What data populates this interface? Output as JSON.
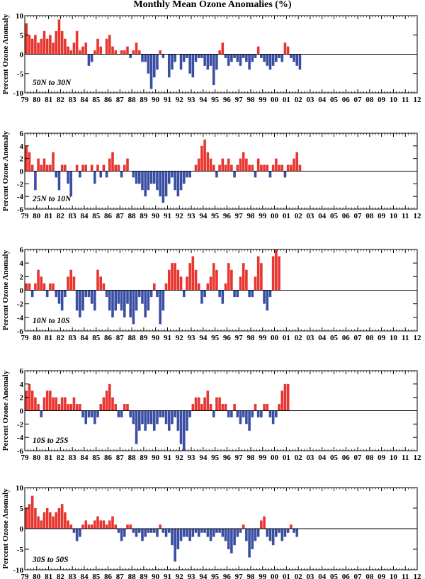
{
  "title": "Monthly Mean Ozone Anomalies (%)",
  "colors": {
    "positive": "#e8352f",
    "negative": "#3a4fa3",
    "axis": "#000000"
  },
  "chart_data": [
    {
      "type": "bar",
      "region_label": "50N to 30N",
      "ylabel": "Percent Ozone Anomaly",
      "x_ticks": [
        "79",
        "80",
        "81",
        "82",
        "83",
        "84",
        "85",
        "86",
        "87",
        "88",
        "89",
        "90",
        "91",
        "92",
        "93",
        "94",
        "95",
        "96",
        "97",
        "98",
        "99",
        "00",
        "01",
        "02",
        "03",
        "04",
        "05",
        "06",
        "07",
        "08",
        "09",
        "10",
        "11",
        "12"
      ],
      "y_ticks": [
        10,
        5,
        0,
        -5,
        -10
      ],
      "ylim": [
        -10,
        10
      ],
      "grid": false,
      "value_resolution": "approximate, sampled every 3 months from Jan 1979",
      "values": [
        8,
        5,
        4,
        5,
        3,
        4,
        6,
        4,
        5,
        3,
        6,
        9,
        6,
        4,
        2,
        1,
        3,
        6,
        1,
        2,
        3,
        -3,
        -2,
        1,
        4,
        2,
        0,
        4,
        5,
        2,
        1,
        0,
        1,
        1,
        2,
        -1,
        1,
        3,
        1,
        -2,
        -2,
        -5,
        -9,
        -6,
        -4,
        1,
        -1,
        0,
        -6,
        -4,
        -2,
        0,
        -4,
        -2,
        -1,
        -5,
        -6,
        -2,
        -1,
        -1,
        -3,
        -4,
        -3,
        -8,
        -4,
        1,
        3,
        -1,
        -3,
        -2,
        -1,
        -2,
        -3,
        -1,
        -2,
        -4,
        -2,
        -1,
        2,
        -1,
        -2,
        -3,
        -4,
        -3,
        -2,
        -1,
        -2,
        3,
        2,
        -1,
        -2,
        -3,
        -4
      ]
    },
    {
      "type": "bar",
      "region_label": "25N to 10N",
      "ylabel": "Percent Ozone Anomaly",
      "x_ticks": [
        "79",
        "80",
        "81",
        "82",
        "83",
        "84",
        "85",
        "86",
        "87",
        "88",
        "89",
        "90",
        "91",
        "92",
        "93",
        "94",
        "95",
        "96",
        "97",
        "98",
        "99",
        "00",
        "01",
        "02",
        "03",
        "04",
        "05",
        "06",
        "07",
        "08",
        "09",
        "10",
        "11",
        "12"
      ],
      "y_ticks": [
        6,
        4,
        2,
        0,
        -2,
        -4,
        -6
      ],
      "ylim": [
        -6,
        6
      ],
      "grid": false,
      "value_resolution": "approximate, sampled every 3 months from Jan 1979",
      "values": [
        4,
        3,
        1,
        -3,
        2,
        1,
        2,
        1,
        1,
        3,
        -1,
        -3,
        1,
        1,
        -2,
        -4,
        0,
        1,
        -1,
        1,
        1,
        0,
        1,
        -2,
        1,
        -1,
        1,
        -1,
        2,
        3,
        1,
        1,
        -1,
        1,
        2,
        0,
        -1,
        -2,
        -2,
        -3,
        -4,
        -3,
        -2,
        -2,
        -3,
        -4,
        -5,
        -4,
        -2,
        -1,
        -3,
        -4,
        -3,
        -2,
        -1,
        -1,
        0,
        1,
        2,
        4,
        5,
        3,
        2,
        1,
        -1,
        1,
        2,
        1,
        2,
        1,
        -1,
        1,
        2,
        3,
        2,
        1,
        1,
        -1,
        2,
        1,
        1,
        1,
        -1,
        1,
        2,
        1,
        1,
        -1,
        1,
        1,
        2,
        3,
        1
      ]
    },
    {
      "type": "bar",
      "region_label": "10N to 10S",
      "ylabel": "Percent Ozone Anomaly",
      "x_ticks": [
        "79",
        "80",
        "81",
        "82",
        "83",
        "84",
        "85",
        "86",
        "87",
        "88",
        "89",
        "90",
        "91",
        "92",
        "93",
        "94",
        "95",
        "96",
        "97",
        "98",
        "99",
        "00",
        "01",
        "02",
        "03",
        "04",
        "05",
        "06",
        "07",
        "08",
        "09",
        "10",
        "11",
        "12"
      ],
      "y_ticks": [
        6,
        4,
        2,
        0,
        -2,
        -4,
        -6
      ],
      "ylim": [
        -6,
        6
      ],
      "grid": false,
      "value_resolution": "approximate, sampled every 3 months from Jan 1979",
      "values": [
        1,
        1,
        -1,
        1,
        3,
        2,
        1,
        -1,
        1,
        1,
        -1,
        -2,
        -3,
        -1,
        2,
        3,
        2,
        -3,
        -4,
        -3,
        -1,
        -1,
        -2,
        -3,
        3,
        2,
        1,
        -1,
        -3,
        -4,
        -3,
        -2,
        -3,
        -4,
        -2,
        -4,
        -5,
        -3,
        -1,
        -2,
        -4,
        -3,
        -1,
        1,
        -1,
        -5,
        -3,
        1,
        3,
        4,
        4,
        3,
        2,
        -1,
        2,
        4,
        5,
        3,
        1,
        -2,
        -1,
        1,
        2,
        4,
        3,
        -1,
        -2,
        1,
        4,
        3,
        -1,
        -1,
        2,
        4,
        3,
        -1,
        -1,
        2,
        5,
        4,
        -2,
        -3,
        -1,
        5,
        6,
        5
      ]
    },
    {
      "type": "bar",
      "region_label": "10S to 25S",
      "ylabel": "Percent Ozone Anomaly",
      "x_ticks": [
        "79",
        "80",
        "81",
        "82",
        "83",
        "84",
        "85",
        "86",
        "87",
        "88",
        "89",
        "90",
        "91",
        "92",
        "93",
        "94",
        "95",
        "96",
        "97",
        "98",
        "99",
        "00",
        "01",
        "02",
        "03",
        "04",
        "05",
        "06",
        "07",
        "08",
        "09",
        "10",
        "11",
        "12"
      ],
      "y_ticks": [
        6,
        4,
        2,
        0,
        -2,
        -4,
        -6
      ],
      "ylim": [
        -6,
        6
      ],
      "grid": false,
      "value_resolution": "approximate, sampled every 3 months from Jan 1979",
      "values": [
        3,
        4,
        3,
        2,
        1,
        -1,
        2,
        3,
        3,
        2,
        2,
        1,
        2,
        2,
        1,
        1,
        2,
        1,
        1,
        -1,
        -2,
        -1,
        -1,
        -2,
        -1,
        1,
        2,
        3,
        4,
        2,
        1,
        -1,
        -1,
        1,
        1,
        -1,
        -2,
        -5,
        -3,
        -2,
        -3,
        -2,
        -2,
        -3,
        -2,
        -1,
        -1,
        -2,
        -3,
        -2,
        -1,
        -3,
        -5,
        -6,
        -3,
        -1,
        1,
        2,
        2,
        1,
        2,
        3,
        1,
        -1,
        2,
        2,
        1,
        1,
        -1,
        -1,
        1,
        -1,
        -2,
        -1,
        -2,
        -3,
        -1,
        1,
        -1,
        -1,
        1,
        1,
        -1,
        -2,
        -1,
        1,
        3,
        4,
        4
      ]
    },
    {
      "type": "bar",
      "region_label": "30S to 50S",
      "ylabel": "Percent Ozone Anomaly",
      "x_ticks": [
        "79",
        "80",
        "81",
        "82",
        "83",
        "84",
        "85",
        "86",
        "87",
        "88",
        "89",
        "90",
        "91",
        "92",
        "93",
        "94",
        "95",
        "96",
        "97",
        "98",
        "99",
        "00",
        "01",
        "02",
        "03",
        "04",
        "05",
        "06",
        "07",
        "08",
        "09",
        "10",
        "11",
        "12"
      ],
      "y_ticks": [
        10,
        5,
        0,
        -5,
        -10
      ],
      "ylim": [
        -10,
        10
      ],
      "grid": false,
      "value_resolution": "approximate, sampled every 3 months from Jan 1979",
      "values": [
        5,
        6,
        8,
        5,
        3,
        2,
        4,
        5,
        4,
        3,
        4,
        5,
        6,
        4,
        2,
        1,
        -1,
        -3,
        -2,
        1,
        2,
        1,
        1,
        2,
        3,
        2,
        2,
        1,
        2,
        3,
        1,
        -1,
        -3,
        -2,
        1,
        1,
        -1,
        -2,
        -1,
        -3,
        -2,
        -1,
        -1,
        -1,
        -2,
        1,
        -1,
        -2,
        -1,
        -4,
        -8,
        -5,
        -3,
        -2,
        -2,
        -3,
        -2,
        -1,
        -2,
        -1,
        -1,
        -2,
        -3,
        -2,
        -1,
        -1,
        -2,
        -3,
        -5,
        -6,
        -4,
        -2,
        -1,
        1,
        -3,
        -7,
        -5,
        -3,
        -2,
        2,
        3,
        -2,
        -3,
        -4,
        -2,
        -1,
        -3,
        -2,
        -1,
        1,
        -1,
        -2
      ]
    }
  ]
}
